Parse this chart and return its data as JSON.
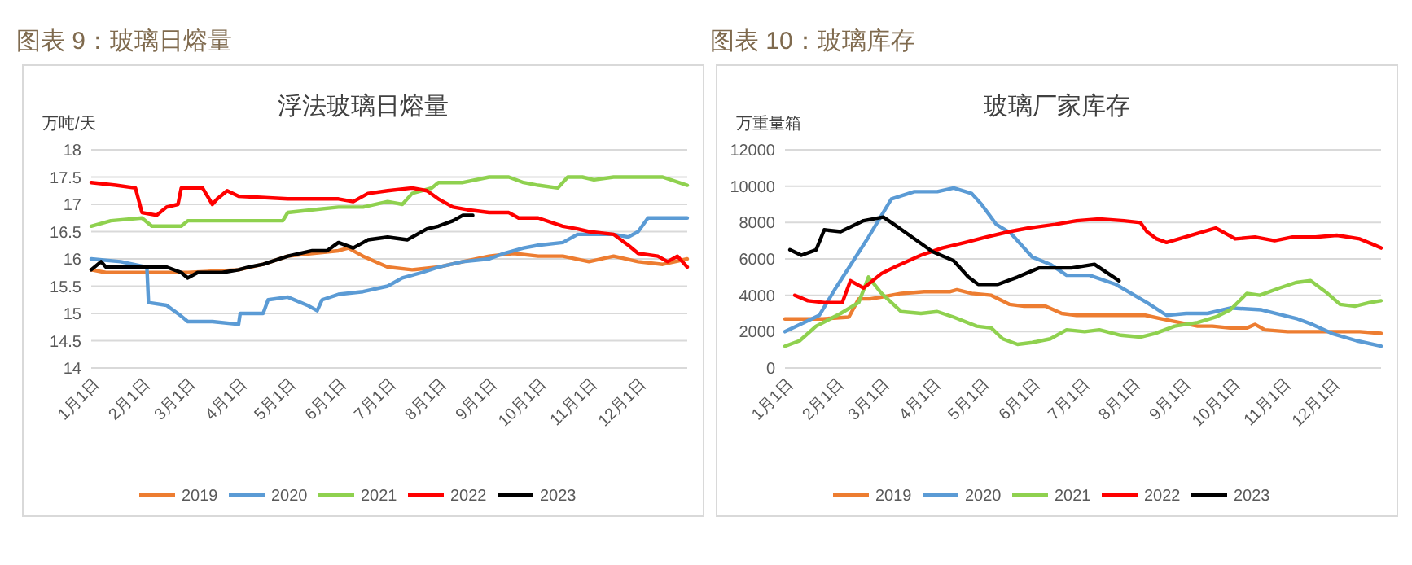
{
  "chart_data": [
    {
      "type": "line",
      "title": "图表 9：玻璃日熔量",
      "subtitle": "浮法玻璃日熔量",
      "ylabel": "万吨/天",
      "xlim": [
        "--01-01",
        "--12-31"
      ],
      "xticks": [
        {
          "value": "--01-01",
          "label": "1月1日"
        },
        {
          "value": "--02-01",
          "label": "2月1日"
        },
        {
          "value": "--03-01",
          "label": "3月1日"
        },
        {
          "value": "--04-01",
          "label": "4月1日"
        },
        {
          "value": "--05-01",
          "label": "5月1日"
        },
        {
          "value": "--06-01",
          "label": "6月1日"
        },
        {
          "value": "--07-01",
          "label": "7月1日"
        },
        {
          "value": "--08-01",
          "label": "8月1日"
        },
        {
          "value": "--09-01",
          "label": "9月1日"
        },
        {
          "value": "--10-01",
          "label": "10月1日"
        },
        {
          "value": "--11-01",
          "label": "11月1日"
        },
        {
          "value": "--12-01",
          "label": "12月1日"
        }
      ],
      "ylim": [
        14,
        18
      ],
      "yticks": [
        14,
        14.5,
        15,
        15.5,
        16,
        16.5,
        17,
        17.5,
        18
      ],
      "grid": "y",
      "legend": "bottom",
      "series": [
        {
          "name": "2019",
          "color": "#ed7d31",
          "x": [
            "--01-01",
            "--01-10",
            "--02-01",
            "--03-01",
            "--04-01",
            "--04-16",
            "--05-01",
            "--05-16",
            "--06-01",
            "--06-07",
            "--06-16",
            "--07-01",
            "--07-16",
            "--08-01",
            "--08-16",
            "--09-01",
            "--09-16",
            "--10-01",
            "--10-16",
            "--11-01",
            "--11-16",
            "--12-01",
            "--12-16",
            "--12-31"
          ],
          "values": [
            15.8,
            15.75,
            15.75,
            15.75,
            15.8,
            15.9,
            16.05,
            16.1,
            16.15,
            16.2,
            16.05,
            15.85,
            15.8,
            15.85,
            15.95,
            16.05,
            16.1,
            16.05,
            16.05,
            15.95,
            16.05,
            15.95,
            15.9,
            16
          ]
        },
        {
          "name": "2020",
          "color": "#5b9bd5",
          "x": [
            "--01-01",
            "--01-19",
            "--02-04",
            "--02-05",
            "--02-16",
            "--02-25",
            "--03-01",
            "--03-16",
            "--04-01",
            "--04-02",
            "--04-16",
            "--04-19",
            "--05-01",
            "--05-13",
            "--05-19",
            "--05-22",
            "--06-01",
            "--06-16",
            "--07-01",
            "--07-10",
            "--07-22",
            "--08-01",
            "--08-16",
            "--09-01",
            "--09-10",
            "--09-22",
            "--10-01",
            "--10-16",
            "--10-25",
            "--11-16",
            "--11-25",
            "--12-01",
            "--12-07",
            "--12-31"
          ],
          "values": [
            16,
            15.95,
            15.85,
            15.2,
            15.15,
            14.95,
            14.85,
            14.85,
            14.8,
            15,
            15,
            15.25,
            15.3,
            15.15,
            15.05,
            15.25,
            15.35,
            15.4,
            15.5,
            15.65,
            15.75,
            15.85,
            15.95,
            16,
            16.1,
            16.2,
            16.25,
            16.3,
            16.45,
            16.45,
            16.4,
            16.5,
            16.75,
            16.75
          ]
        },
        {
          "name": "2021",
          "color": "#8fd14f",
          "x": [
            "--01-01",
            "--01-13",
            "--02-01",
            "--02-07",
            "--02-25",
            "--03-01",
            "--04-28",
            "--05-01",
            "--05-16",
            "--06-01",
            "--06-16",
            "--07-01",
            "--07-10",
            "--07-16",
            "--07-28",
            "--08-01",
            "--08-16",
            "--09-01",
            "--09-13",
            "--09-22",
            "--10-01",
            "--10-13",
            "--10-19",
            "--10-28",
            "--11-04",
            "--11-16",
            "--12-01",
            "--12-16",
            "--12-31"
          ],
          "values": [
            16.6,
            16.7,
            16.75,
            16.6,
            16.6,
            16.7,
            16.7,
            16.85,
            16.9,
            16.95,
            16.95,
            17.05,
            17,
            17.2,
            17.3,
            17.4,
            17.4,
            17.5,
            17.5,
            17.4,
            17.35,
            17.3,
            17.5,
            17.5,
            17.45,
            17.5,
            17.5,
            17.5,
            17.35
          ]
        },
        {
          "name": "2022",
          "color": "#ff0000",
          "x": [
            "--01-01",
            "--01-16",
            "--01-28",
            "--02-01",
            "--02-10",
            "--02-16",
            "--02-23",
            "--02-25",
            "--03-10",
            "--03-16",
            "--03-19",
            "--03-25",
            "--04-01",
            "--05-01",
            "--06-01",
            "--06-10",
            "--06-19",
            "--07-01",
            "--07-16",
            "--07-25",
            "--08-01",
            "--08-10",
            "--08-19",
            "--09-01",
            "--09-13",
            "--09-19",
            "--10-01",
            "--10-16",
            "--10-25",
            "--11-01",
            "--11-16",
            "--11-25",
            "--12-01",
            "--12-13",
            "--12-19",
            "--12-25",
            "--12-31"
          ],
          "values": [
            17.4,
            17.35,
            17.3,
            16.85,
            16.8,
            16.95,
            17,
            17.3,
            17.3,
            17,
            17.1,
            17.25,
            17.15,
            17.1,
            17.1,
            17.05,
            17.2,
            17.25,
            17.3,
            17.25,
            17.1,
            16.95,
            16.9,
            16.85,
            16.85,
            16.75,
            16.75,
            16.6,
            16.55,
            16.5,
            16.45,
            16.25,
            16.1,
            16.05,
            15.95,
            16.05,
            15.85
          ]
        },
        {
          "name": "2023",
          "color": "#000000",
          "x": [
            "--01-01",
            "--01-07",
            "--01-10",
            "--02-01",
            "--02-16",
            "--02-25",
            "--03-01",
            "--03-07",
            "--03-22",
            "--04-01",
            "--04-07",
            "--04-16",
            "--05-01",
            "--05-16",
            "--05-25",
            "--06-01",
            "--06-10",
            "--06-19",
            "--07-01",
            "--07-13",
            "--07-19",
            "--07-25",
            "--08-01",
            "--08-10",
            "--08-16",
            "--08-22"
          ],
          "values": [
            15.8,
            15.95,
            15.85,
            15.85,
            15.85,
            15.75,
            15.65,
            15.75,
            15.75,
            15.8,
            15.85,
            15.9,
            16.05,
            16.15,
            16.15,
            16.3,
            16.2,
            16.35,
            16.4,
            16.35,
            16.45,
            16.55,
            16.6,
            16.7,
            16.8,
            16.8
          ]
        }
      ]
    },
    {
      "type": "line",
      "title": "图表 10：玻璃库存",
      "subtitle": "玻璃厂家库存",
      "ylabel": "万重量箱",
      "xlim": [
        "--01-01",
        "--12-31"
      ],
      "xticks": [
        {
          "value": "--01-01",
          "label": "1月1日"
        },
        {
          "value": "--02-01",
          "label": "2月1日"
        },
        {
          "value": "--03-01",
          "label": "3月1日"
        },
        {
          "value": "--04-01",
          "label": "4月1日"
        },
        {
          "value": "--05-01",
          "label": "5月1日"
        },
        {
          "value": "--06-01",
          "label": "6月1日"
        },
        {
          "value": "--07-01",
          "label": "7月1日"
        },
        {
          "value": "--08-01",
          "label": "8月1日"
        },
        {
          "value": "--09-01",
          "label": "9月1日"
        },
        {
          "value": "--10-01",
          "label": "10月1日"
        },
        {
          "value": "--11-01",
          "label": "11月1日"
        },
        {
          "value": "--12-01",
          "label": "12月1日"
        }
      ],
      "ylim": [
        0,
        12000
      ],
      "yticks": [
        0,
        2000,
        4000,
        6000,
        8000,
        10000,
        12000
      ],
      "grid": "y",
      "legend": "bottom",
      "series": [
        {
          "name": "2019",
          "color": "#ed7d31",
          "x": [
            "--01-01",
            "--01-24",
            "--02-09",
            "--02-15",
            "--02-22",
            "--03-01",
            "--03-13",
            "--03-27",
            "--04-12",
            "--04-16",
            "--04-25",
            "--05-07",
            "--05-18",
            "--05-27",
            "--06-09",
            "--06-19",
            "--06-28",
            "--07-12",
            "--07-25",
            "--08-09",
            "--08-19",
            "--08-30",
            "--09-10",
            "--09-19",
            "--09-30",
            "--10-10",
            "--10-15",
            "--10-21",
            "--11-04",
            "--11-21",
            "--12-04",
            "--12-18",
            "--12-31"
          ],
          "values": [
            2700,
            2700,
            2800,
            3800,
            3800,
            3900,
            4100,
            4200,
            4200,
            4300,
            4100,
            4000,
            3500,
            3400,
            3400,
            3000,
            2900,
            2900,
            2900,
            2900,
            2700,
            2500,
            2300,
            2300,
            2200,
            2200,
            2400,
            2100,
            2000,
            2000,
            2000,
            2000,
            1900
          ]
        },
        {
          "name": "2020",
          "color": "#5b9bd5",
          "x": [
            "--01-01",
            "--01-22",
            "--02-01",
            "--02-21",
            "--03-07",
            "--03-21",
            "--04-04",
            "--04-14",
            "--04-25",
            "--05-01",
            "--05-10",
            "--05-19",
            "--06-01",
            "--06-12",
            "--06-22",
            "--07-06",
            "--07-22",
            "--08-10",
            "--08-22",
            "--09-03",
            "--09-16",
            "--09-30",
            "--10-19",
            "--11-10",
            "--11-19",
            "--12-01",
            "--12-16",
            "--12-31"
          ],
          "values": [
            2000,
            2900,
            4400,
            7200,
            9300,
            9700,
            9700,
            9900,
            9600,
            9000,
            7900,
            7400,
            6100,
            5700,
            5100,
            5100,
            4600,
            3600,
            2900,
            3000,
            3000,
            3300,
            3200,
            2700,
            2400,
            1900,
            1500,
            1200
          ]
        },
        {
          "name": "2021",
          "color": "#8fd14f",
          "x": [
            "--01-01",
            "--01-10",
            "--01-20",
            "--02-04",
            "--02-15",
            "--02-21",
            "--03-01",
            "--03-13",
            "--03-25",
            "--04-04",
            "--04-14",
            "--04-28",
            "--05-07",
            "--05-14",
            "--05-23",
            "--06-01",
            "--06-12",
            "--06-22",
            "--07-03",
            "--07-12",
            "--07-25",
            "--08-06",
            "--08-15",
            "--08-27",
            "--09-10",
            "--09-21",
            "--09-30",
            "--10-10",
            "--10-18",
            "--10-30",
            "--11-09",
            "--11-18",
            "--11-27",
            "--12-06",
            "--12-15",
            "--12-24",
            "--12-31"
          ],
          "values": [
            1200,
            1500,
            2300,
            3000,
            3600,
            5000,
            4100,
            3100,
            3000,
            3100,
            2800,
            2300,
            2200,
            1600,
            1300,
            1400,
            1600,
            2100,
            2000,
            2100,
            1800,
            1700,
            1900,
            2300,
            2500,
            2800,
            3200,
            4100,
            4000,
            4400,
            4700,
            4800,
            4200,
            3500,
            3400,
            3600,
            3700
          ]
        },
        {
          "name": "2022",
          "color": "#ff0000",
          "x": [
            "--01-07",
            "--01-15",
            "--01-25",
            "--02-05",
            "--02-10",
            "--02-18",
            "--03-01",
            "--03-10",
            "--03-25",
            "--04-07",
            "--04-21",
            "--05-04",
            "--05-18",
            "--05-30",
            "--06-15",
            "--06-28",
            "--07-12",
            "--07-27",
            "--08-06",
            "--08-10",
            "--08-16",
            "--08-22",
            "--09-10",
            "--09-21",
            "--10-03",
            "--10-15",
            "--10-27",
            "--11-07",
            "--11-21",
            "--12-04",
            "--12-18",
            "--12-26",
            "--12-31"
          ],
          "values": [
            4000,
            3700,
            3600,
            3600,
            4800,
            4400,
            5200,
            5600,
            6200,
            6600,
            6900,
            7200,
            7500,
            7700,
            7900,
            8100,
            8200,
            8100,
            8000,
            7500,
            7100,
            6900,
            7400,
            7700,
            7100,
            7200,
            7000,
            7200,
            7200,
            7300,
            7100,
            6800,
            6600
          ]
        },
        {
          "name": "2023",
          "color": "#000000",
          "x": [
            "--01-04",
            "--01-11",
            "--01-20",
            "--01-25",
            "--02-04",
            "--02-18",
            "--03-02",
            "--03-07",
            "--03-18",
            "--04-01",
            "--04-14",
            "--04-23",
            "--04-29",
            "--05-11",
            "--05-23",
            "--06-05",
            "--06-16",
            "--06-25",
            "--07-09",
            "--07-24"
          ],
          "values": [
            6500,
            6200,
            6500,
            7600,
            7500,
            8100,
            8300,
            8000,
            7300,
            6400,
            5900,
            5000,
            4600,
            4600,
            5000,
            5500,
            5500,
            5500,
            5700,
            4800
          ]
        }
      ]
    }
  ]
}
